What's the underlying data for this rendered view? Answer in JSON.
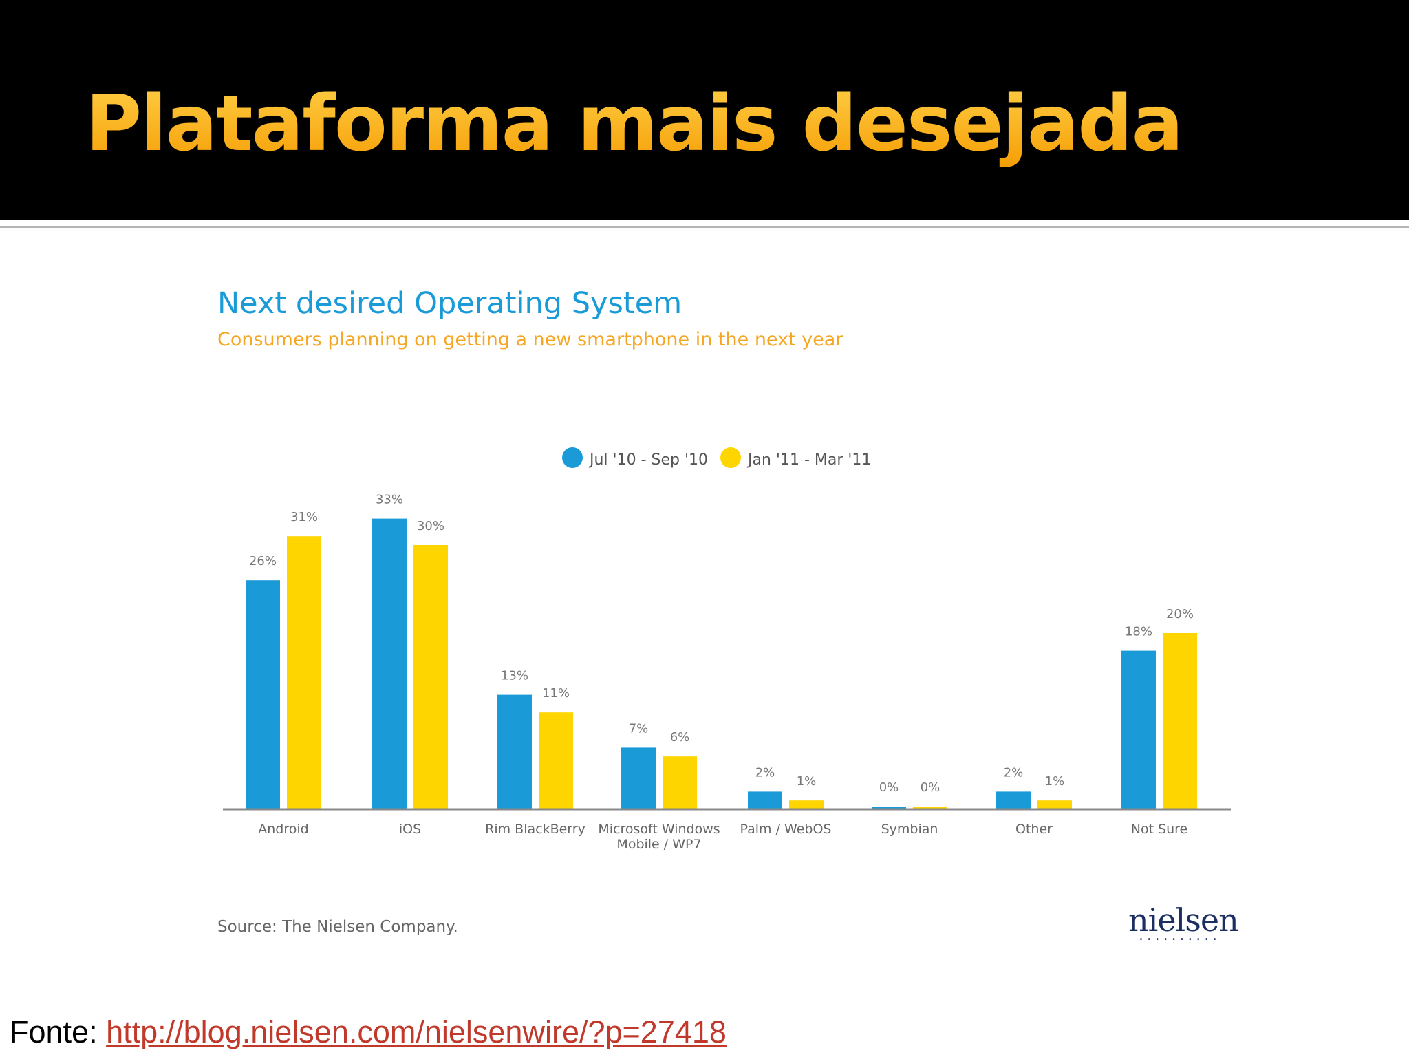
{
  "slide": {
    "title": "Plataforma mais desejada",
    "footer_label": "Fonte:",
    "footer_link": "http://blog.nielsen.com/nielsenwire/?p=27418"
  },
  "chart_data": {
    "type": "bar",
    "title": "Next desired Operating System",
    "subtitle": "Consumers planning on getting a new smartphone in the next year",
    "categories": [
      "Android",
      "iOS",
      "Rim BlackBerry",
      "Microsoft Windows Mobile / WP7",
      "Palm / WebOS",
      "Symbian",
      "Other",
      "Not Sure"
    ],
    "series": [
      {
        "name": "Jul '10 - Sep '10",
        "color": "#1a9bd7",
        "values": [
          26,
          33,
          13,
          7,
          2,
          0,
          2,
          18
        ]
      },
      {
        "name": "Jan '11 - Mar '11",
        "color": "#ffd500",
        "values": [
          31,
          30,
          11,
          6,
          1,
          0,
          1,
          20
        ]
      }
    ],
    "data_labels": [
      [
        "26%",
        "33%",
        "13%",
        "7%",
        "2%",
        "0%",
        "2%",
        "18%"
      ],
      [
        "31%",
        "30%",
        "11%",
        "6%",
        "1%",
        "0%",
        "1%",
        "20%"
      ]
    ],
    "ylim": [
      0,
      35
    ],
    "legend_position": "top-center",
    "grid": false,
    "source": "Source: The Nielsen Company.",
    "logo_text": "nielsen"
  }
}
